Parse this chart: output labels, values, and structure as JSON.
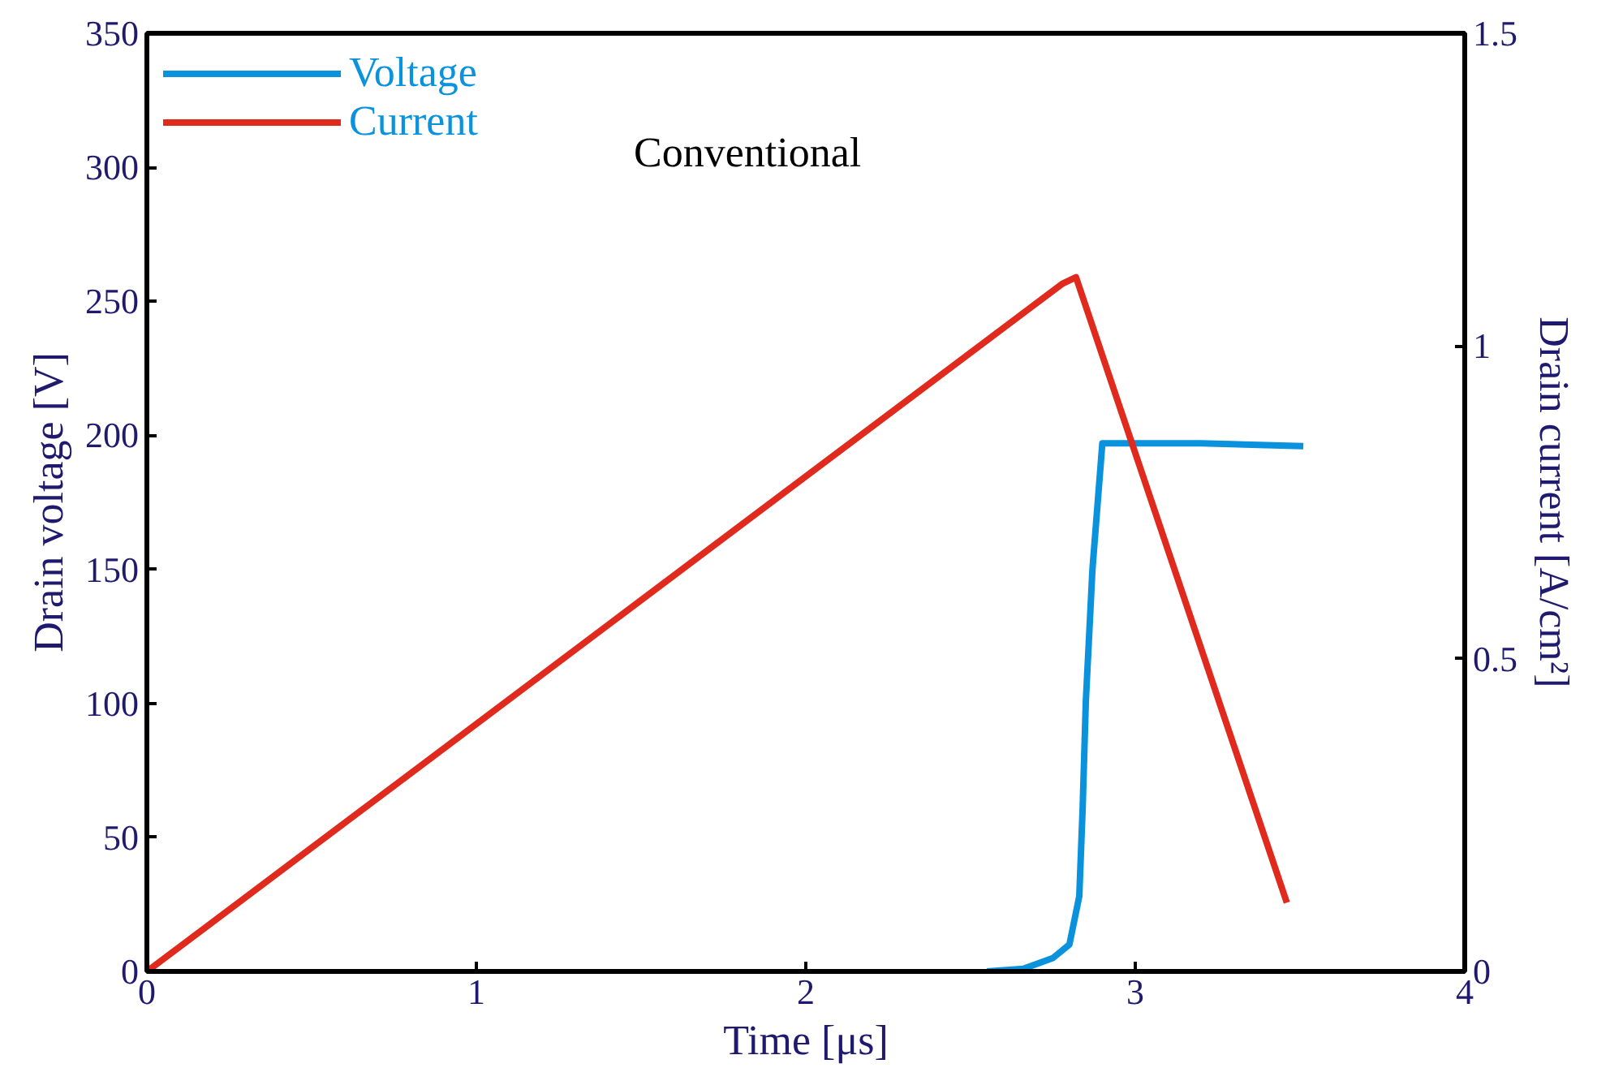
{
  "chart_data": {
    "type": "line",
    "xlabel": "Time [μs]",
    "ylabel": "Drain voltage [V]",
    "y2label": "Drain current [A/cm²]",
    "xlim": [
      0,
      4
    ],
    "xticks": [
      0,
      1,
      2,
      3,
      4
    ],
    "ylim": [
      0,
      350
    ],
    "yticks": [
      0,
      50,
      100,
      150,
      200,
      250,
      300,
      350
    ],
    "y2lim": [
      0,
      1.5
    ],
    "y2ticks": [
      0,
      0.5,
      1,
      1.5
    ],
    "series": [
      {
        "name": "Voltage",
        "color": "#0a93dc",
        "x": [
          2.55,
          2.66,
          2.75,
          2.8,
          2.83,
          2.84,
          2.85,
          2.87,
          2.9,
          3.2,
          3.51
        ],
        "values": [
          0,
          1,
          5,
          10,
          28,
          60,
          101,
          150,
          197,
          197,
          196
        ]
      },
      {
        "name": "Current",
        "color": "#e02a1e",
        "axis": "y2",
        "x": [
          0,
          2.78,
          2.82,
          3.46
        ],
        "values": [
          0,
          1.1,
          1.11,
          0.11
        ]
      }
    ],
    "annotations": [
      "Conventional"
    ],
    "legend": "top left",
    "grid": false,
    "line_style": "solid",
    "marker": "none"
  }
}
